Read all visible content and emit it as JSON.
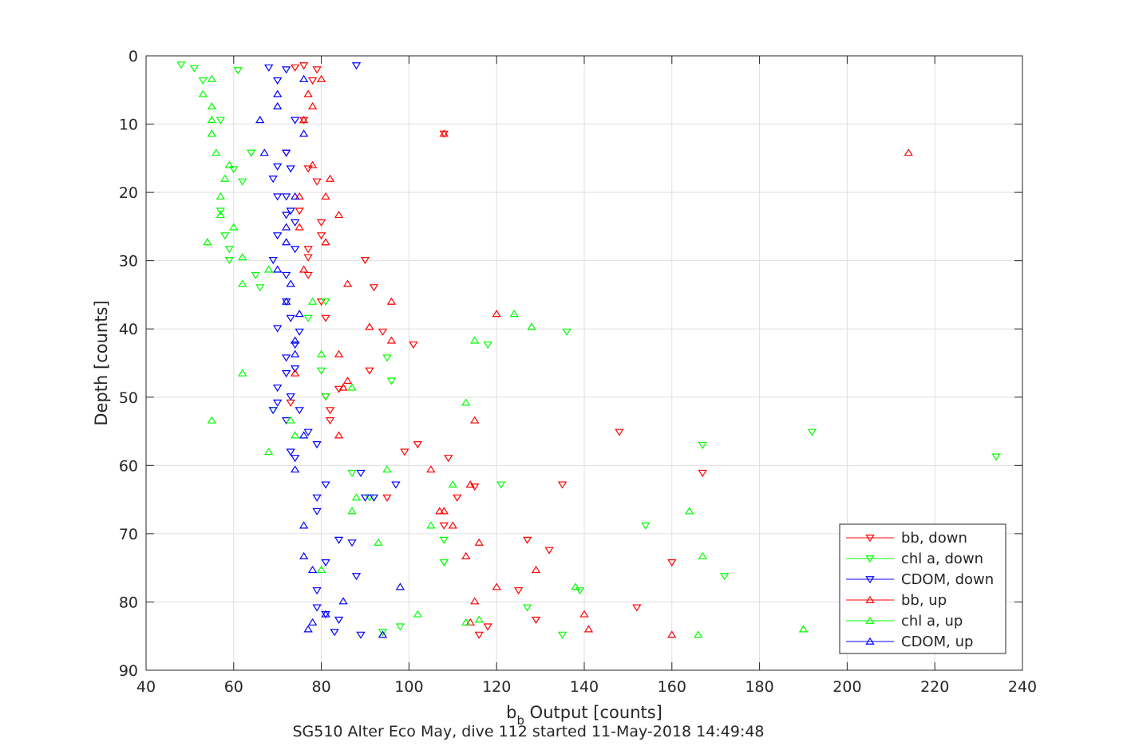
{
  "chart_data": {
    "type": "scatter",
    "title": "",
    "caption": "SG510 Alter Eco May, dive 112 started 11-May-2018 14:49:48",
    "xlabel": {
      "base": "b",
      "sub": "b",
      "rest": " Output [counts]"
    },
    "ylabel": "Depth [counts]",
    "xlim": [
      40,
      240
    ],
    "ylim": [
      0,
      90
    ],
    "y_reversed": true,
    "grid": true,
    "legend_position": "bottom-right",
    "xticks": [
      "40",
      "60",
      "80",
      "100",
      "120",
      "140",
      "160",
      "180",
      "200",
      "220",
      "240"
    ],
    "yticks": [
      "0",
      "10",
      "20",
      "30",
      "40",
      "50",
      "60",
      "70",
      "80",
      "90"
    ],
    "series": [
      {
        "name": "bb, down",
        "color": "#ff0000",
        "marker": "triangle-down",
        "points": [
          [
            74,
            1.7
          ],
          [
            76,
            1.4
          ],
          [
            79,
            2.0
          ],
          [
            78,
            3.6
          ],
          [
            76,
            9.4
          ],
          [
            108,
            11.4
          ],
          [
            72,
            14.2
          ],
          [
            77,
            16.5
          ],
          [
            79,
            18.4
          ],
          [
            75,
            22.7
          ],
          [
            80,
            24.4
          ],
          [
            80,
            26.3
          ],
          [
            77,
            28.3
          ],
          [
            77,
            29.5
          ],
          [
            90,
            29.9
          ],
          [
            77,
            32.1
          ],
          [
            92,
            33.9
          ],
          [
            80,
            36.0
          ],
          [
            81,
            38.4
          ],
          [
            94,
            40.4
          ],
          [
            101,
            42.3
          ],
          [
            91,
            46.1
          ],
          [
            84,
            48.8
          ],
          [
            81,
            49.9
          ],
          [
            82,
            51.9
          ],
          [
            82,
            53.4
          ],
          [
            73,
            50.8
          ],
          [
            102,
            56.9
          ],
          [
            99,
            58.0
          ],
          [
            109,
            58.9
          ],
          [
            148,
            55.1
          ],
          [
            167,
            61.1
          ],
          [
            115,
            63.1
          ],
          [
            135,
            62.8
          ],
          [
            111,
            64.7
          ],
          [
            95,
            64.7
          ],
          [
            108,
            68.8
          ],
          [
            127,
            70.9
          ],
          [
            132,
            72.4
          ],
          [
            160,
            74.2
          ],
          [
            125,
            78.3
          ],
          [
            152,
            80.8
          ],
          [
            129,
            82.6
          ],
          [
            118,
            83.6
          ],
          [
            116,
            84.8
          ]
        ]
      },
      {
        "name": "chl a, down",
        "color": "#00ff00",
        "marker": "triangle-down",
        "points": [
          [
            48,
            1.3
          ],
          [
            51,
            1.8
          ],
          [
            61,
            2.1
          ],
          [
            53,
            3.6
          ],
          [
            57,
            9.4
          ],
          [
            64,
            14.2
          ],
          [
            60,
            16.6
          ],
          [
            62,
            18.4
          ],
          [
            57,
            22.7
          ],
          [
            58,
            26.3
          ],
          [
            59,
            28.3
          ],
          [
            59,
            29.9
          ],
          [
            65,
            32.1
          ],
          [
            66,
            33.9
          ],
          [
            81,
            36.0
          ],
          [
            77,
            38.4
          ],
          [
            136,
            40.4
          ],
          [
            118,
            42.3
          ],
          [
            95,
            44.2
          ],
          [
            80,
            46.1
          ],
          [
            96,
            47.6
          ],
          [
            81,
            49.9
          ],
          [
            69,
            51.9
          ],
          [
            87,
            61.1
          ],
          [
            121,
            62.8
          ],
          [
            91,
            64.7
          ],
          [
            167,
            57.0
          ],
          [
            192,
            55.1
          ],
          [
            234,
            58.7
          ],
          [
            154,
            68.8
          ],
          [
            108,
            70.9
          ],
          [
            108,
            74.2
          ],
          [
            172,
            76.2
          ],
          [
            139,
            78.3
          ],
          [
            127,
            80.8
          ],
          [
            98,
            83.6
          ],
          [
            94,
            84.4
          ],
          [
            135,
            84.8
          ]
        ]
      },
      {
        "name": "CDOM, down",
        "color": "#0000ff",
        "marker": "triangle-down",
        "points": [
          [
            68,
            1.7
          ],
          [
            72,
            2.0
          ],
          [
            88,
            1.4
          ],
          [
            70,
            3.6
          ],
          [
            74,
            9.4
          ],
          [
            72,
            14.2
          ],
          [
            70,
            16.2
          ],
          [
            73,
            16.5
          ],
          [
            69,
            18.0
          ],
          [
            70,
            20.6
          ],
          [
            72,
            20.6
          ],
          [
            73,
            22.7
          ],
          [
            72,
            23.3
          ],
          [
            74,
            24.4
          ],
          [
            70,
            26.3
          ],
          [
            74,
            28.3
          ],
          [
            69,
            29.9
          ],
          [
            72,
            32.1
          ],
          [
            72,
            36.0
          ],
          [
            73,
            38.4
          ],
          [
            75,
            40.4
          ],
          [
            70,
            39.9
          ],
          [
            74,
            42.3
          ],
          [
            72,
            44.2
          ],
          [
            74,
            45.8
          ],
          [
            72,
            46.5
          ],
          [
            70,
            48.6
          ],
          [
            73,
            49.9
          ],
          [
            70,
            50.8
          ],
          [
            69,
            51.9
          ],
          [
            75,
            51.9
          ],
          [
            72,
            53.4
          ],
          [
            77,
            55.1
          ],
          [
            79,
            56.9
          ],
          [
            73,
            58.0
          ],
          [
            74,
            58.9
          ],
          [
            81,
            62.8
          ],
          [
            89,
            61.1
          ],
          [
            97,
            62.8
          ],
          [
            79,
            64.7
          ],
          [
            90,
            64.7
          ],
          [
            92,
            64.7
          ],
          [
            79,
            66.7
          ],
          [
            84,
            70.9
          ],
          [
            87,
            71.3
          ],
          [
            88,
            76.2
          ],
          [
            81,
            74.2
          ],
          [
            79,
            78.3
          ],
          [
            79,
            80.8
          ],
          [
            81,
            81.8
          ],
          [
            84,
            82.6
          ],
          [
            83,
            84.4
          ],
          [
            89,
            84.8
          ]
        ]
      },
      {
        "name": "bb, up",
        "color": "#ff0000",
        "marker": "triangle-up",
        "points": [
          [
            80,
            3.4
          ],
          [
            77,
            5.6
          ],
          [
            78,
            7.4
          ],
          [
            76,
            9.4
          ],
          [
            108,
            11.4
          ],
          [
            214,
            14.2
          ],
          [
            78,
            16.0
          ],
          [
            82,
            18.0
          ],
          [
            75,
            20.6
          ],
          [
            81,
            20.6
          ],
          [
            84,
            23.3
          ],
          [
            75,
            25.1
          ],
          [
            81,
            27.3
          ],
          [
            76,
            31.3
          ],
          [
            86,
            33.4
          ],
          [
            96,
            36.0
          ],
          [
            120,
            37.8
          ],
          [
            91,
            39.7
          ],
          [
            96,
            41.7
          ],
          [
            84,
            43.7
          ],
          [
            74,
            46.5
          ],
          [
            86,
            47.6
          ],
          [
            85,
            48.6
          ],
          [
            115,
            53.4
          ],
          [
            84,
            55.6
          ],
          [
            105,
            60.6
          ],
          [
            114,
            62.8
          ],
          [
            107,
            66.7
          ],
          [
            108,
            66.7
          ],
          [
            110,
            68.8
          ],
          [
            116,
            71.3
          ],
          [
            113,
            73.3
          ],
          [
            129,
            75.3
          ],
          [
            120,
            77.8
          ],
          [
            115,
            79.9
          ],
          [
            140,
            81.8
          ],
          [
            141,
            84.0
          ],
          [
            160,
            84.8
          ],
          [
            114,
            83.0
          ]
        ]
      },
      {
        "name": "chl a, up",
        "color": "#00ff00",
        "marker": "triangle-up",
        "points": [
          [
            55,
            3.4
          ],
          [
            53,
            5.6
          ],
          [
            55,
            7.4
          ],
          [
            55,
            9.4
          ],
          [
            55,
            11.4
          ],
          [
            56,
            14.2
          ],
          [
            59,
            16.0
          ],
          [
            58,
            18.0
          ],
          [
            57,
            20.6
          ],
          [
            57,
            23.3
          ],
          [
            60,
            25.1
          ],
          [
            54,
            27.3
          ],
          [
            62,
            29.5
          ],
          [
            68,
            31.3
          ],
          [
            62,
            33.4
          ],
          [
            78,
            36.0
          ],
          [
            124,
            37.8
          ],
          [
            128,
            39.7
          ],
          [
            115,
            41.7
          ],
          [
            80,
            43.7
          ],
          [
            62,
            46.5
          ],
          [
            87,
            48.6
          ],
          [
            113,
            50.8
          ],
          [
            55,
            53.4
          ],
          [
            73,
            53.4
          ],
          [
            74,
            55.6
          ],
          [
            68,
            58.0
          ],
          [
            95,
            60.6
          ],
          [
            110,
            62.8
          ],
          [
            88,
            64.7
          ],
          [
            87,
            66.7
          ],
          [
            164,
            66.7
          ],
          [
            105,
            68.8
          ],
          [
            93,
            71.3
          ],
          [
            167,
            73.3
          ],
          [
            80,
            75.3
          ],
          [
            138,
            77.8
          ],
          [
            102,
            81.8
          ],
          [
            116,
            82.6
          ],
          [
            113,
            83.0
          ],
          [
            190,
            84.0
          ],
          [
            166,
            84.8
          ]
        ]
      },
      {
        "name": "CDOM, up",
        "color": "#0000ff",
        "marker": "triangle-up",
        "points": [
          [
            76,
            3.4
          ],
          [
            70,
            5.6
          ],
          [
            70,
            7.4
          ],
          [
            66,
            9.4
          ],
          [
            76,
            11.4
          ],
          [
            67,
            14.2
          ],
          [
            74,
            20.6
          ],
          [
            72,
            25.1
          ],
          [
            72,
            27.3
          ],
          [
            70,
            31.3
          ],
          [
            73,
            33.4
          ],
          [
            72,
            36.0
          ],
          [
            75,
            37.8
          ],
          [
            74,
            41.7
          ],
          [
            74,
            43.7
          ],
          [
            76,
            55.6
          ],
          [
            74,
            60.6
          ],
          [
            76,
            68.8
          ],
          [
            76,
            73.3
          ],
          [
            78,
            75.3
          ],
          [
            98,
            77.8
          ],
          [
            85,
            79.9
          ],
          [
            81,
            81.8
          ],
          [
            78,
            83.0
          ],
          [
            77,
            84.0
          ],
          [
            94,
            84.8
          ]
        ]
      }
    ]
  }
}
